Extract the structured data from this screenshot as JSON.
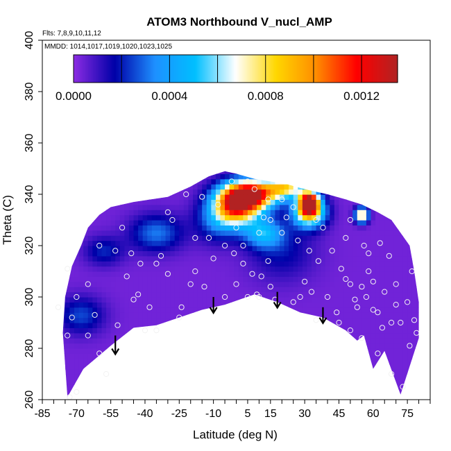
{
  "chart_data": {
    "type": "heatmap",
    "title": "ATOM3 Northbound V_nucl_AMP",
    "subtitle_flights": "Flts: 7,8,9,10,11,12",
    "subtitle_dates": "MMDD: 1014,1017,1019,1020,1023,1025",
    "xlabel": "Latitude (deg N)",
    "ylabel": "Theta (C)",
    "xlim": [
      -85,
      85
    ],
    "ylim": [
      260,
      400
    ],
    "x_ticks": [
      -85,
      -70,
      -55,
      -40,
      -25,
      -10,
      5,
      15,
      30,
      45,
      60,
      75
    ],
    "x_minor_step": 5,
    "y_ticks": [
      260,
      280,
      300,
      320,
      340,
      360,
      380,
      400
    ],
    "colorbar": {
      "range": [
        0,
        0.00135
      ],
      "ticks": [
        0.0,
        0.0004,
        0.0008,
        0.0012
      ],
      "tick_labels": [
        "0.0000",
        "0.0004",
        "0.0008",
        "0.0012"
      ],
      "colors": [
        "#8a2be2",
        "#0000a8",
        "#1e90ff",
        "#00bfff",
        "#ffffff",
        "#ffd700",
        "#ff8c00",
        "#ff0000",
        "#b22222"
      ]
    },
    "coverage_boundary": [
      [
        -74,
        261
      ],
      [
        -67,
        272
      ],
      [
        -55,
        281
      ],
      [
        -45,
        288
      ],
      [
        -35,
        289
      ],
      [
        -25,
        292
      ],
      [
        -15,
        295
      ],
      [
        -5,
        297
      ],
      [
        8,
        301
      ],
      [
        18,
        298
      ],
      [
        28,
        294
      ],
      [
        38,
        292
      ],
      [
        48,
        287
      ],
      [
        53,
        283
      ],
      [
        56,
        285
      ],
      [
        60,
        272
      ],
      [
        65,
        279
      ],
      [
        72,
        262
      ],
      [
        80,
        284
      ],
      [
        80,
        298
      ],
      [
        78,
        310
      ],
      [
        76,
        320
      ],
      [
        72,
        325
      ],
      [
        68,
        330
      ],
      [
        62,
        333
      ],
      [
        55,
        336
      ],
      [
        48,
        338
      ],
      [
        40,
        340
      ],
      [
        30,
        342
      ],
      [
        22,
        344
      ],
      [
        15,
        345
      ],
      [
        8,
        346
      ],
      [
        0,
        348
      ],
      [
        -5,
        349
      ],
      [
        -12,
        347
      ],
      [
        -20,
        343
      ],
      [
        -30,
        339
      ],
      [
        -45,
        337
      ],
      [
        -55,
        335
      ],
      [
        -60,
        332
      ],
      [
        -65,
        327
      ],
      [
        -68,
        320
      ],
      [
        -72,
        312
      ],
      [
        -75,
        300
      ],
      [
        -76,
        286
      ]
    ],
    "field_blobs": [
      {
        "lat": 6,
        "theta": 340,
        "value": 0.00125,
        "sx": 8,
        "sy": 4
      },
      {
        "lat": 0,
        "theta": 335,
        "value": 0.0009,
        "sx": 7,
        "sy": 5
      },
      {
        "lat": 22,
        "theta": 343,
        "value": 0.0007,
        "sx": 6,
        "sy": 3
      },
      {
        "lat": 32,
        "theta": 337,
        "value": 0.00125,
        "sx": 3,
        "sy": 3
      },
      {
        "lat": 32,
        "theta": 333,
        "value": 0.0008,
        "sx": 5,
        "sy": 4
      },
      {
        "lat": 55,
        "theta": 332,
        "value": 0.00085,
        "sx": 2,
        "sy": 2
      },
      {
        "lat": 12,
        "theta": 325,
        "value": 0.0004,
        "sx": 6,
        "sy": 4
      },
      {
        "lat": -8,
        "theta": 330,
        "value": 0.00025,
        "sx": 7,
        "sy": 6
      },
      {
        "lat": -35,
        "theta": 325,
        "value": 0.00028,
        "sx": 8,
        "sy": 5
      },
      {
        "lat": -68,
        "theta": 293,
        "value": 0.00022,
        "sx": 7,
        "sy": 5
      },
      {
        "lat": 20,
        "theta": 318,
        "value": 0.00015,
        "sx": 10,
        "sy": 8
      },
      {
        "lat": -58,
        "theta": 318,
        "value": 0.00018,
        "sx": 6,
        "sy": 4
      }
    ],
    "arrows_latitude": [
      -53,
      -10,
      18,
      38
    ],
    "sample_points": [
      [
        -74,
        311
      ],
      [
        -72,
        292
      ],
      [
        -74,
        285
      ],
      [
        -73,
        261
      ],
      [
        -70,
        263
      ],
      [
        -62,
        293
      ],
      [
        -57,
        270
      ],
      [
        -48,
        308
      ],
      [
        -43,
        301
      ],
      [
        -40,
        287
      ],
      [
        -38,
        296
      ],
      [
        -35,
        287
      ],
      [
        -25,
        292
      ],
      [
        -20,
        305
      ],
      [
        -18,
        323
      ],
      [
        -12,
        323
      ],
      [
        -10,
        315
      ],
      [
        -5,
        300
      ],
      [
        0,
        327
      ],
      [
        5,
        300
      ],
      [
        9,
        301
      ],
      [
        10,
        300
      ],
      [
        10,
        325
      ],
      [
        12,
        331
      ],
      [
        15,
        330
      ],
      [
        17,
        299
      ],
      [
        20,
        325
      ],
      [
        22,
        331
      ],
      [
        25,
        335
      ],
      [
        28,
        300
      ],
      [
        32,
        318
      ],
      [
        35,
        330
      ],
      [
        38,
        327
      ],
      [
        40,
        300
      ],
      [
        44,
        294
      ],
      [
        46,
        311
      ],
      [
        48,
        307
      ],
      [
        50,
        305
      ],
      [
        50,
        330
      ],
      [
        52,
        299
      ],
      [
        53,
        296
      ],
      [
        55,
        304
      ],
      [
        57,
        300
      ],
      [
        58,
        310
      ],
      [
        60,
        306
      ],
      [
        60,
        295
      ],
      [
        62,
        294
      ],
      [
        64,
        288
      ],
      [
        65,
        302
      ],
      [
        68,
        290
      ],
      [
        70,
        297
      ],
      [
        72,
        290
      ],
      [
        73,
        265
      ],
      [
        77,
        310
      ],
      [
        78,
        291
      ],
      [
        79,
        286
      ],
      [
        -60,
        320
      ],
      [
        -53,
        318
      ],
      [
        -46,
        317
      ],
      [
        -42,
        313
      ],
      [
        -30,
        333
      ],
      [
        -28,
        330
      ],
      [
        -33,
        316
      ],
      [
        -2,
        345
      ],
      [
        5,
        345
      ],
      [
        8,
        342
      ],
      [
        14,
        338
      ],
      [
        20,
        338
      ],
      [
        -8,
        336
      ],
      [
        -15,
        339
      ],
      [
        -22,
        340
      ],
      [
        -50,
        327
      ],
      [
        48,
        323
      ],
      [
        58,
        317
      ],
      [
        -78,
        296
      ],
      [
        -65,
        285
      ],
      [
        -60,
        278
      ],
      [
        -52,
        289
      ],
      [
        -45,
        299
      ],
      [
        -30,
        309
      ],
      [
        -35,
        313
      ],
      [
        -24,
        296
      ],
      [
        -18,
        310
      ],
      [
        -14,
        304
      ],
      [
        0,
        305
      ],
      [
        3,
        313
      ],
      [
        14,
        314
      ],
      [
        27,
        322
      ],
      [
        36,
        314
      ],
      [
        42,
        318
      ],
      [
        56,
        320
      ],
      [
        63,
        321
      ],
      [
        67,
        316
      ],
      [
        70,
        305
      ],
      [
        75,
        298
      ],
      [
        76,
        281
      ],
      [
        68,
        270
      ],
      [
        62,
        278
      ],
      [
        55,
        284
      ],
      [
        50,
        287
      ],
      [
        45,
        290
      ],
      [
        35,
        291
      ],
      [
        25,
        298
      ],
      [
        15,
        304
      ],
      [
        -5,
        320
      ],
      [
        -1,
        317
      ],
      [
        3,
        320
      ],
      [
        7,
        309
      ],
      [
        11,
        308
      ],
      [
        30,
        306
      ],
      [
        33,
        302
      ],
      [
        -65,
        305
      ],
      [
        -70,
        300
      ]
    ]
  }
}
